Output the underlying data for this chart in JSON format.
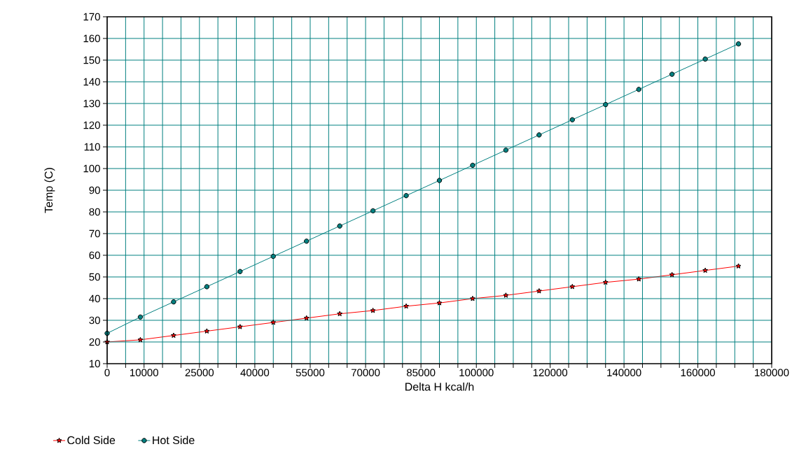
{
  "chart_data": {
    "type": "line",
    "xlabel": "Delta H kcal/h",
    "ylabel": "Temp (C)",
    "x": [
      0,
      9000,
      18000,
      27000,
      36000,
      45000,
      54000,
      63000,
      72000,
      81000,
      90000,
      99000,
      108000,
      117000,
      126000,
      135000,
      144000,
      153000,
      162000,
      171000
    ],
    "series": [
      {
        "name": "Cold Side",
        "color": "#ff0000",
        "marker": "star",
        "values": [
          20,
          21,
          23,
          25,
          27,
          29,
          31,
          33,
          34.5,
          36.5,
          38,
          40,
          41.5,
          43.5,
          45.5,
          47.5,
          49,
          51,
          53,
          55
        ]
      },
      {
        "name": "Hot Side",
        "color": "#008080",
        "marker": "circle",
        "values": [
          24,
          31.5,
          38.5,
          45.5,
          52.5,
          59.5,
          66.5,
          73.5,
          80.5,
          87.5,
          94.5,
          101.5,
          108.5,
          115.5,
          122.5,
          129.5,
          136.5,
          143.5,
          150.5,
          157.5
        ]
      }
    ],
    "xlim": [
      0,
      180000
    ],
    "ylim": [
      10,
      170
    ],
    "xticks": [
      0,
      {
        "value": 5000,
        "label": null
      },
      10000,
      {
        "value": 15000,
        "label": null
      },
      {
        "value": 20000,
        "label": null
      },
      25000,
      {
        "value": 30000,
        "label": null
      },
      {
        "value": 35000,
        "label": null
      },
      40000,
      {
        "value": 45000,
        "label": null
      },
      {
        "value": 50000,
        "label": null
      },
      55000,
      {
        "value": 60000,
        "label": null
      },
      {
        "value": 65000,
        "label": null
      },
      70000,
      {
        "value": 75000,
        "label": null
      },
      {
        "value": 80000,
        "label": null
      },
      85000,
      {
        "value": 90000,
        "label": null
      },
      {
        "value": 95000,
        "label": null
      },
      100000,
      {
        "value": 105000,
        "label": null
      },
      {
        "value": 110000,
        "label": null
      },
      {
        "value": 115000,
        "label": null
      },
      120000,
      {
        "value": 125000,
        "label": null
      },
      {
        "value": 130000,
        "label": null
      },
      {
        "value": 135000,
        "label": null
      },
      140000,
      {
        "value": 145000,
        "label": null
      },
      {
        "value": 150000,
        "label": null
      },
      {
        "value": 155000,
        "label": null
      },
      160000,
      {
        "value": 165000,
        "label": null
      },
      {
        "value": 170000,
        "label": null
      },
      {
        "value": 175000,
        "label": null
      },
      180000
    ],
    "yticks": [
      10,
      20,
      30,
      40,
      50,
      60,
      70,
      80,
      90,
      100,
      110,
      120,
      130,
      140,
      150,
      160,
      170
    ],
    "grid": true,
    "legend": "bottom left",
    "line_style": "solid"
  }
}
